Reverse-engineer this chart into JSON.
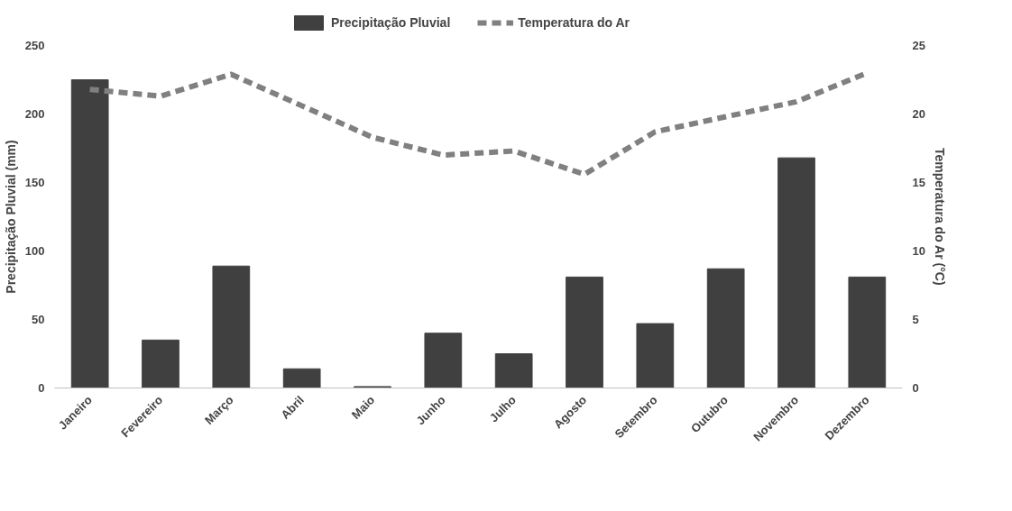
{
  "chart_data": {
    "type": "bar",
    "categories": [
      "Janeiro",
      "Fevereiro",
      "Março",
      "Abril",
      "Maio",
      "Junho",
      "Julho",
      "Agosto",
      "Setembro",
      "Outubro",
      "Novembro",
      "Dezembro"
    ],
    "ylabel": "Precipitação Pluvial (mm)",
    "y2label": "Temperatura do Ar (°C)",
    "ylim": [
      0,
      250
    ],
    "yticks": [
      0,
      50,
      100,
      150,
      200,
      250
    ],
    "y2lim": [
      0,
      25
    ],
    "y2ticks": [
      0,
      5,
      10,
      15,
      20,
      25
    ],
    "grid": false,
    "legend": "top",
    "series": [
      {
        "name": "Precipitação Pluvial",
        "color": "#404040",
        "values": [
          225,
          35,
          89,
          14,
          1,
          40,
          25,
          81,
          47,
          87,
          168,
          81
        ]
      },
      {
        "name": "Temperatura do Ar",
        "type": "line",
        "axis": "y2",
        "line_style": "dashed",
        "marker": "none",
        "color": "#808080",
        "values": [
          21.8,
          21.3,
          22.9,
          20.6,
          18.3,
          17.0,
          17.3,
          15.6,
          18.7,
          19.8,
          20.9,
          23.0
        ]
      }
    ]
  }
}
